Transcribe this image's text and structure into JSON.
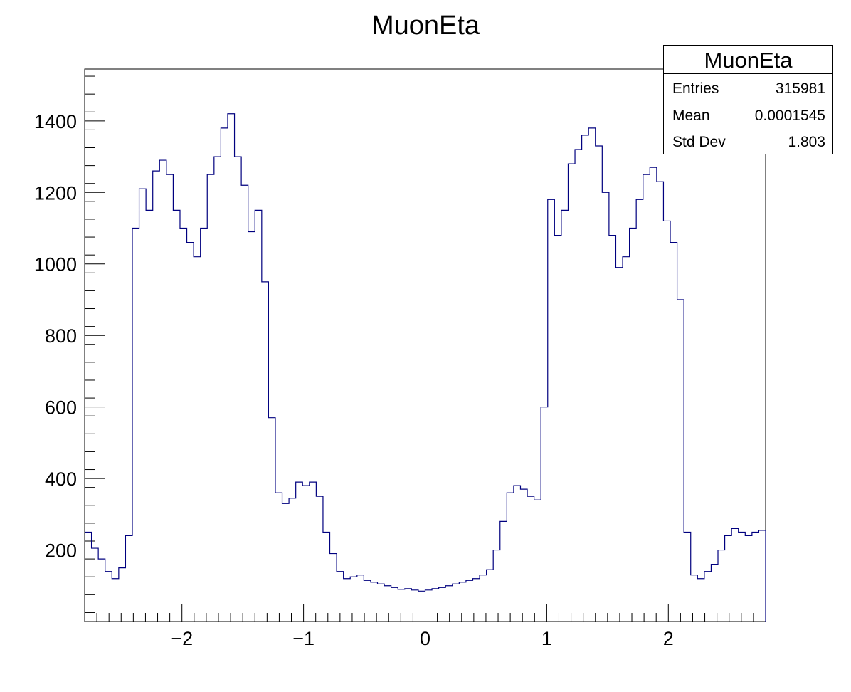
{
  "chart_data": {
    "type": "histogram-step",
    "title": "MuonEta",
    "xlabel": "",
    "ylabel": "",
    "xlim": [
      -2.8,
      2.8
    ],
    "ylim": [
      0,
      1545
    ],
    "x_ticks": [
      -2,
      -1,
      0,
      1,
      2
    ],
    "x_tick_labels": [
      "−2",
      "−1",
      "0",
      "1",
      "2"
    ],
    "y_ticks": [
      200,
      400,
      600,
      800,
      1000,
      1200,
      1400
    ],
    "y_tick_labels": [
      "200",
      "400",
      "600",
      "800",
      "1000",
      "1200",
      "1400"
    ],
    "line_color": "#00007f",
    "grid": false,
    "bin_width": 0.056,
    "x": [
      -2.772,
      -2.716,
      -2.66,
      -2.604,
      -2.548,
      -2.492,
      -2.436,
      -2.38,
      -2.324,
      -2.268,
      -2.212,
      -2.156,
      -2.1,
      -2.044,
      -1.988,
      -1.932,
      -1.876,
      -1.82,
      -1.764,
      -1.708,
      -1.652,
      -1.596,
      -1.54,
      -1.484,
      -1.428,
      -1.372,
      -1.316,
      -1.26,
      -1.204,
      -1.148,
      -1.092,
      -1.036,
      -0.98,
      -0.924,
      -0.868,
      -0.812,
      -0.756,
      -0.7,
      -0.644,
      -0.588,
      -0.532,
      -0.476,
      -0.42,
      -0.364,
      -0.308,
      -0.252,
      -0.196,
      -0.14,
      -0.084,
      -0.028,
      0.028,
      0.084,
      0.14,
      0.196,
      0.252,
      0.308,
      0.364,
      0.42,
      0.476,
      0.532,
      0.588,
      0.644,
      0.7,
      0.756,
      0.812,
      0.868,
      0.924,
      0.98,
      1.036,
      1.092,
      1.148,
      1.204,
      1.26,
      1.316,
      1.372,
      1.428,
      1.484,
      1.54,
      1.596,
      1.652,
      1.708,
      1.764,
      1.82,
      1.876,
      1.932,
      1.988,
      2.044,
      2.1,
      2.156,
      2.212,
      2.268,
      2.324,
      2.38,
      2.436,
      2.492,
      2.548,
      2.604,
      2.66,
      2.716,
      2.772
    ],
    "values": [
      250,
      205,
      175,
      140,
      120,
      150,
      240,
      1100,
      1210,
      1150,
      1260,
      1290,
      1250,
      1150,
      1100,
      1060,
      1020,
      1100,
      1250,
      1300,
      1380,
      1420,
      1300,
      1220,
      1090,
      1150,
      950,
      570,
      360,
      330,
      345,
      390,
      380,
      390,
      350,
      250,
      190,
      140,
      120,
      125,
      130,
      115,
      110,
      105,
      100,
      95,
      90,
      92,
      88,
      85,
      88,
      92,
      95,
      100,
      105,
      110,
      115,
      120,
      130,
      145,
      200,
      280,
      360,
      380,
      370,
      350,
      340,
      600,
      1180,
      1080,
      1150,
      1280,
      1320,
      1360,
      1380,
      1330,
      1200,
      1080,
      990,
      1020,
      1100,
      1180,
      1250,
      1270,
      1230,
      1120,
      1060,
      900,
      250,
      130,
      120,
      140,
      160,
      200,
      240,
      260,
      250,
      240,
      250,
      255
    ]
  },
  "stats_box": {
    "title": "MuonEta",
    "rows": [
      {
        "label": "Entries",
        "value": "315981"
      },
      {
        "label": "Mean",
        "value": "0.0001545"
      },
      {
        "label": "Std Dev",
        "value": "1.803"
      }
    ]
  }
}
